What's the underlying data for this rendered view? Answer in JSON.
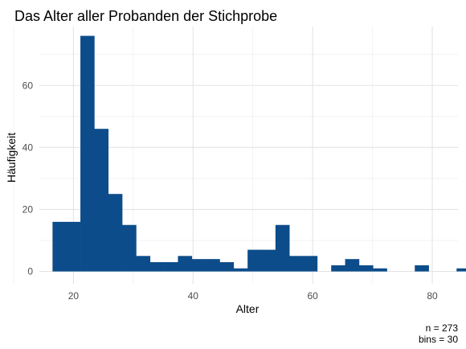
{
  "chart_data": {
    "type": "bar",
    "title": "Das Alter aller Probanden der Stichprobe",
    "xlabel": "Alter",
    "ylabel": "Häufigkeit",
    "caption": [
      "n = 273",
      "bins = 30"
    ],
    "bar_color": "#0c4c8a",
    "grid": true,
    "xlim": [
      14.3,
      84.3
    ],
    "ylim": [
      -4,
      79
    ],
    "x_ticks": [
      20,
      40,
      60,
      80
    ],
    "y_ticks": [
      0,
      20,
      40,
      60
    ],
    "bin_width": 2.33,
    "bin_edges_start": 16.5,
    "values": [
      16,
      16,
      76,
      46,
      25,
      15,
      5,
      3,
      3,
      5,
      4,
      4,
      3,
      1,
      7,
      7,
      15,
      5,
      5,
      0,
      2,
      4,
      2,
      1,
      0,
      0,
      2,
      0,
      0,
      1
    ]
  }
}
